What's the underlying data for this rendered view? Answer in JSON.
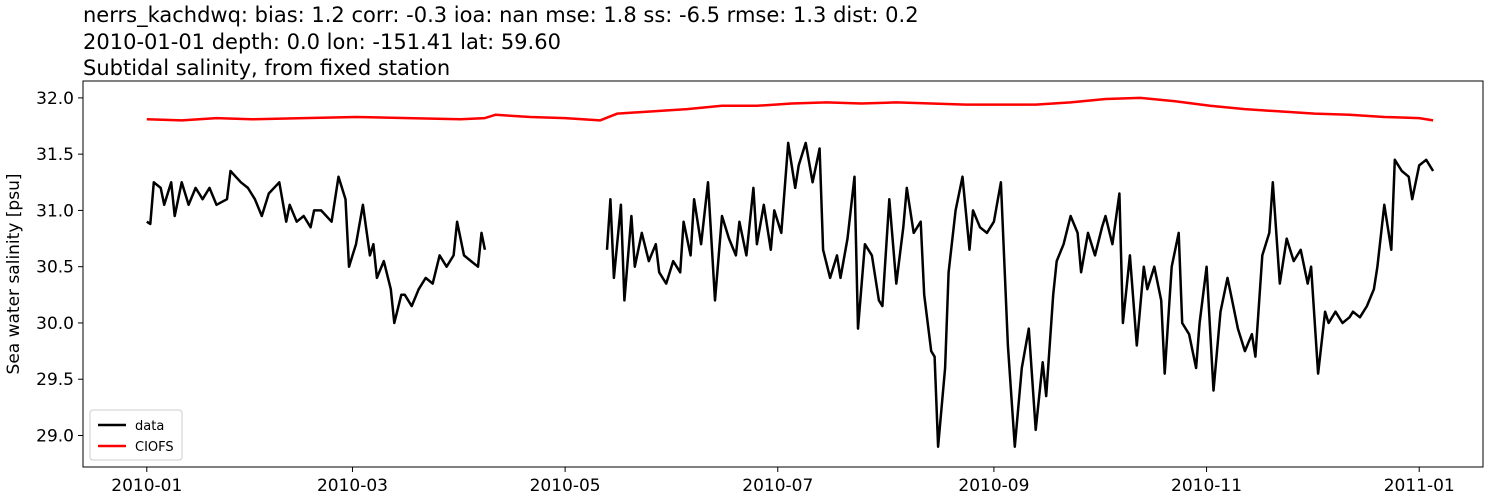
{
  "chart_data": {
    "type": "line",
    "title": [
      "nerrs_kachdwq: bias: 1.2  corr: -0.3  ioa: nan  mse: 1.8  ss: -6.5  rmse: 1.3  dist: 0.2",
      "2010-01-01 depth: 0.0 lon: -151.41 lat: 59.60",
      "Subtidal salinity, from fixed station"
    ],
    "ylabel": "Sea water salinity [psu]",
    "xlim": [
      -18.3,
      383.3
    ],
    "xticks": [
      {
        "value": 0,
        "label": "2010-01"
      },
      {
        "value": 59,
        "label": "2010-03"
      },
      {
        "value": 120,
        "label": "2010-05"
      },
      {
        "value": 181,
        "label": "2010-07"
      },
      {
        "value": 243,
        "label": "2010-09"
      },
      {
        "value": 304,
        "label": "2010-11"
      },
      {
        "value": 365,
        "label": "2011-01"
      }
    ],
    "ylim": [
      28.72,
      32.15
    ],
    "yticks": [
      {
        "value": 29,
        "label": "29.0"
      },
      29.5,
      {
        "value": 30,
        "label": "30.0"
      },
      30.5,
      {
        "value": 31,
        "label": "31.0"
      },
      31.5,
      {
        "value": 32,
        "label": "32.0"
      }
    ],
    "grid": false,
    "legend": "lower left",
    "series": [
      {
        "name": "data",
        "color": "#000000",
        "x": [
          0,
          1,
          2,
          4,
          5,
          7,
          8,
          10,
          12,
          14,
          16,
          18,
          20,
          23,
          24,
          27,
          29,
          31,
          33,
          35,
          38,
          40,
          41,
          43,
          45,
          47,
          48,
          50,
          53,
          55,
          57,
          58,
          60,
          62,
          64,
          65,
          66,
          68,
          70,
          71,
          73,
          74,
          76,
          78,
          80,
          82,
          84,
          86,
          88,
          89,
          91,
          93,
          95,
          96,
          97,
          115,
          132,
          133,
          134,
          136,
          137,
          139,
          140,
          142,
          144,
          146,
          147,
          149,
          151,
          153,
          154,
          156,
          157,
          159,
          161,
          163,
          165,
          167,
          169,
          170,
          172,
          174,
          175,
          177,
          179,
          180,
          182,
          184,
          186,
          187,
          189,
          191,
          193,
          194,
          196,
          198,
          199,
          201,
          203,
          204,
          206,
          208,
          210,
          211,
          213,
          215,
          217,
          218,
          220,
          222,
          223,
          225,
          226,
          227,
          229,
          230,
          232,
          234,
          236,
          237,
          239,
          241,
          243,
          245,
          247,
          249,
          251,
          253,
          255,
          257,
          258,
          260,
          261,
          263,
          265,
          267,
          268,
          270,
          272,
          274,
          275,
          277,
          279,
          280,
          282,
          284,
          286,
          287,
          289,
          291,
          292,
          294,
          296,
          297,
          299,
          301,
          302,
          304,
          306,
          308,
          310,
          311,
          313,
          315,
          317,
          318,
          320,
          322,
          323,
          325,
          327,
          329,
          331,
          333,
          334,
          336,
          338,
          339,
          341,
          343,
          345,
          346,
          348,
          350,
          352,
          353,
          355,
          357,
          358,
          360,
          362,
          363,
          365,
          367,
          369
        ],
        "values": [
          30.9,
          30.88,
          31.25,
          31.2,
          31.05,
          31.25,
          30.95,
          31.25,
          31.05,
          31.2,
          31.1,
          31.2,
          31.05,
          31.1,
          31.35,
          31.25,
          31.2,
          31.1,
          30.95,
          31.15,
          31.25,
          30.9,
          31.05,
          30.9,
          30.95,
          30.85,
          31.0,
          31.0,
          30.9,
          31.3,
          31.1,
          30.5,
          30.7,
          31.05,
          30.6,
          30.7,
          30.4,
          30.55,
          30.3,
          30.0,
          30.25,
          30.25,
          30.15,
          30.3,
          30.4,
          30.35,
          30.6,
          30.5,
          30.6,
          30.9,
          30.6,
          30.55,
          30.5,
          30.8,
          30.65,
          null,
          30.65,
          31.1,
          30.4,
          31.05,
          30.2,
          30.95,
          30.5,
          30.8,
          30.55,
          30.7,
          30.45,
          30.35,
          30.55,
          30.45,
          30.9,
          30.6,
          31.1,
          30.7,
          31.25,
          30.2,
          30.95,
          30.75,
          30.6,
          30.9,
          30.6,
          31.2,
          30.7,
          31.05,
          30.65,
          31.0,
          30.8,
          31.6,
          31.2,
          31.4,
          31.6,
          31.25,
          31.55,
          30.65,
          30.4,
          30.6,
          30.4,
          30.75,
          31.3,
          29.95,
          30.7,
          30.6,
          30.2,
          30.15,
          31.1,
          30.35,
          30.85,
          31.2,
          30.8,
          30.9,
          30.25,
          29.75,
          29.7,
          28.9,
          29.6,
          30.45,
          31.0,
          31.3,
          30.65,
          31.0,
          30.85,
          30.8,
          30.9,
          31.25,
          29.8,
          28.9,
          29.6,
          29.95,
          29.05,
          29.65,
          29.35,
          30.25,
          30.55,
          30.7,
          30.95,
          30.8,
          30.45,
          30.8,
          30.6,
          30.85,
          30.95,
          30.7,
          31.15,
          30.0,
          30.6,
          29.8,
          30.5,
          30.3,
          30.5,
          30.2,
          29.55,
          30.5,
          30.8,
          30.0,
          29.9,
          29.6,
          30.0,
          30.5,
          29.4,
          30.1,
          30.4,
          30.25,
          29.95,
          29.75,
          29.9,
          29.7,
          30.6,
          30.8,
          31.25,
          30.35,
          30.75,
          30.55,
          30.65,
          30.35,
          30.5,
          29.55,
          30.1,
          30.0,
          30.1,
          30.0,
          30.05,
          30.1,
          30.05,
          30.15,
          30.3,
          30.5,
          31.05,
          30.65,
          31.45,
          31.35,
          31.3,
          31.1,
          31.4,
          31.45,
          31.35
        ]
      },
      {
        "name": "CIOFS",
        "color": "#ff0000",
        "x": [
          0,
          10,
          20,
          30,
          45,
          60,
          75,
          90,
          97,
          100,
          110,
          120,
          130,
          135,
          145,
          155,
          165,
          175,
          185,
          195,
          205,
          215,
          225,
          235,
          245,
          255,
          265,
          275,
          285,
          295,
          305,
          315,
          325,
          335,
          345,
          355,
          365,
          369
        ],
        "values": [
          31.81,
          31.8,
          31.82,
          31.81,
          31.82,
          31.83,
          31.82,
          31.81,
          31.82,
          31.85,
          31.83,
          31.82,
          31.8,
          31.86,
          31.88,
          31.9,
          31.93,
          31.93,
          31.95,
          31.96,
          31.95,
          31.96,
          31.95,
          31.94,
          31.94,
          31.94,
          31.96,
          31.99,
          32.0,
          31.97,
          31.93,
          31.9,
          31.88,
          31.86,
          31.85,
          31.83,
          31.82,
          31.8
        ]
      }
    ]
  }
}
